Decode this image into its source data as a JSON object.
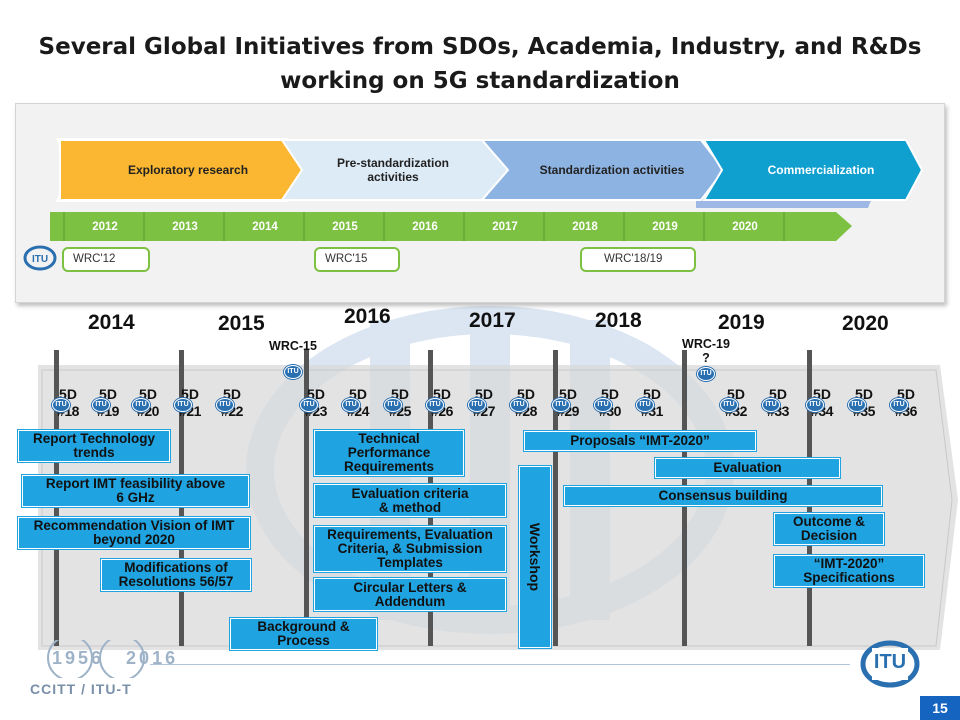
{
  "slide": {
    "title_line1": "Several Global Initiatives from SDOs, Academia, Industry, and R&Ds",
    "title_line2": "working on 5G standardization",
    "page_number": "15"
  },
  "top_panel": {
    "phases": [
      {
        "label": "Exploratory research",
        "color": "#fbb731"
      },
      {
        "label": "Pre-standardization activities",
        "color": "#ddebf7"
      },
      {
        "label": "Standardization activities",
        "color": "#8db3e2"
      },
      {
        "label": "Commercialization",
        "color": "#10a0d0"
      }
    ],
    "years": [
      "2012",
      "2013",
      "2014",
      "2015",
      "2016",
      "2017",
      "2018",
      "2019",
      "2020"
    ],
    "year_strip_color": "#7dc142",
    "wrc": [
      "WRC'12",
      "WRC'15",
      "WRC'18/19"
    ]
  },
  "timeline": {
    "years": [
      "2014",
      "2015",
      "2016",
      "2017",
      "2018",
      "2019",
      "2020"
    ],
    "wrc_markers": [
      {
        "label": "WRC-15"
      },
      {
        "label": "WRC-19\n?"
      }
    ],
    "meeting_prefix": "5D",
    "meetings": [
      "#18",
      "#19",
      "#20",
      "#21",
      "#22",
      "#23",
      "#24",
      "#25",
      "#26",
      "#27",
      "#28",
      "#29",
      "#30",
      "#31",
      "#32",
      "#33",
      "#34",
      "#35",
      "#36"
    ],
    "box_color": "#1fa3e1",
    "activities": [
      "Report Technology trends",
      "Report IMT feasibility above 6 GHz",
      "Recommendation Vision of IMT beyond 2020",
      "Modifications of Resolutions 56/57",
      "Background & Process",
      "Technical Performance Requirements",
      "Evaluation criteria & method",
      "Requirements, Evaluation Criteria, & Submission Templates",
      "Circular Letters & Addendum",
      "Workshop",
      "Proposals “IMT-2020”",
      "Evaluation",
      "Consensus building",
      "Outcome & Decision",
      "“IMT-2020” Specifications"
    ]
  },
  "footer": {
    "logo_text": "CCITT / ITU-T",
    "anniversary_years": "1956 2016",
    "itu_logo": "ITU"
  }
}
